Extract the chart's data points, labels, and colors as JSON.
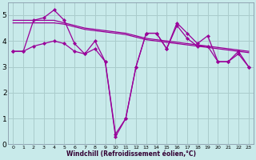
{
  "xlabel": "Windchill (Refroidissement éolien,°C)",
  "ylabel": "",
  "bg_color": "#c8eaea",
  "line_color": "#990099",
  "grid_color": "#aacccc",
  "xlim": [
    -0.5,
    23.5
  ],
  "ylim": [
    0,
    5.5
  ],
  "xticks": [
    0,
    1,
    2,
    3,
    4,
    5,
    6,
    7,
    8,
    9,
    10,
    11,
    12,
    13,
    14,
    15,
    16,
    17,
    18,
    19,
    20,
    21,
    22,
    23
  ],
  "yticks": [
    0,
    1,
    2,
    3,
    4,
    5
  ],
  "series": [
    {
      "y": [
        4.8,
        4.8,
        4.8,
        4.8,
        4.8,
        4.7,
        4.6,
        4.5,
        4.45,
        4.4,
        4.35,
        4.3,
        4.2,
        4.1,
        4.05,
        4.0,
        3.95,
        3.9,
        3.85,
        3.8,
        3.75,
        3.7,
        3.65,
        3.6
      ],
      "has_markers": false
    },
    {
      "y": [
        4.7,
        4.7,
        4.7,
        4.7,
        4.7,
        4.65,
        4.55,
        4.45,
        4.4,
        4.35,
        4.3,
        4.25,
        4.15,
        4.05,
        4.0,
        3.95,
        3.9,
        3.85,
        3.8,
        3.75,
        3.7,
        3.65,
        3.6,
        3.55
      ],
      "has_markers": false
    },
    {
      "y": [
        3.6,
        3.6,
        4.8,
        4.9,
        5.2,
        4.8,
        3.9,
        3.5,
        4.0,
        3.2,
        0.3,
        1.0,
        3.0,
        4.3,
        4.3,
        3.7,
        4.7,
        4.3,
        3.9,
        4.2,
        3.2,
        3.2,
        3.6,
        3.0
      ],
      "has_markers": true
    },
    {
      "y": [
        3.6,
        3.6,
        3.8,
        3.9,
        4.0,
        3.9,
        3.6,
        3.5,
        3.7,
        3.2,
        0.4,
        1.0,
        3.0,
        4.3,
        4.3,
        3.7,
        4.6,
        4.1,
        3.8,
        3.8,
        3.2,
        3.2,
        3.5,
        3.0
      ],
      "has_markers": true
    }
  ]
}
